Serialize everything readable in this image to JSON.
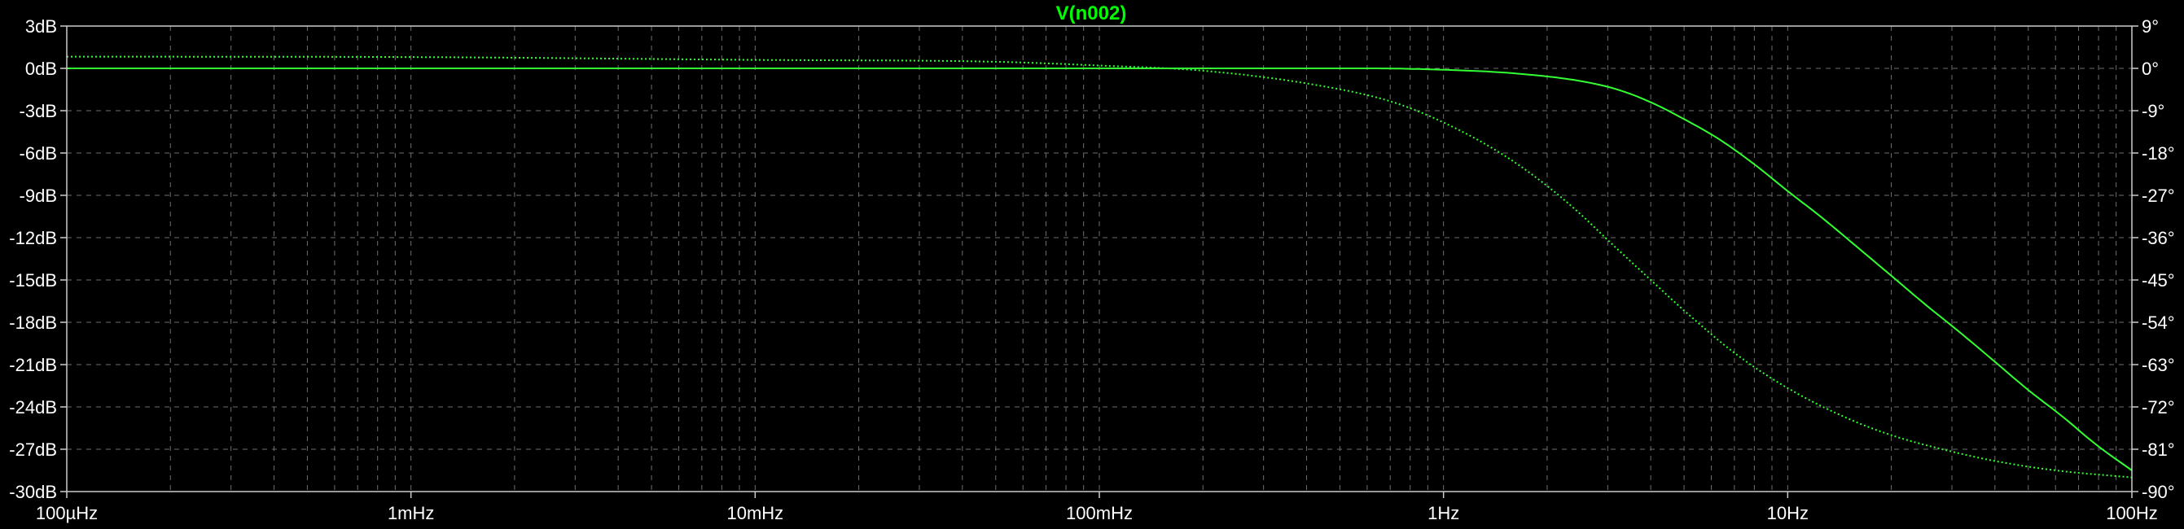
{
  "chart_data": {
    "type": "line",
    "title": "V(n002)",
    "x_scale": "log",
    "xlim_hz": [
      0.0001,
      100
    ],
    "x_ticks": [
      {
        "value": 0.0001,
        "label": "100µHz"
      },
      {
        "value": 0.001,
        "label": "1mHz"
      },
      {
        "value": 0.01,
        "label": "10mHz"
      },
      {
        "value": 0.1,
        "label": "100mHz"
      },
      {
        "value": 1,
        "label": "1Hz"
      },
      {
        "value": 10,
        "label": "10Hz"
      },
      {
        "value": 100,
        "label": "100Hz"
      }
    ],
    "y_left": {
      "ylim_db": [
        -30,
        3
      ],
      "ticks": [
        {
          "value": 3,
          "label": "3dB"
        },
        {
          "value": 0,
          "label": "0dB"
        },
        {
          "value": -3,
          "label": "-3dB"
        },
        {
          "value": -6,
          "label": "-6dB"
        },
        {
          "value": -9,
          "label": "-9dB"
        },
        {
          "value": -12,
          "label": "-12dB"
        },
        {
          "value": -15,
          "label": "-15dB"
        },
        {
          "value": -18,
          "label": "-18dB"
        },
        {
          "value": -21,
          "label": "-21dB"
        },
        {
          "value": -24,
          "label": "-24dB"
        },
        {
          "value": -27,
          "label": "-27dB"
        },
        {
          "value": -30,
          "label": "-30dB"
        }
      ]
    },
    "y_right": {
      "ylim_deg": [
        -90,
        9
      ],
      "ticks": [
        {
          "value": 9,
          "label": "9°"
        },
        {
          "value": 0,
          "label": "0°"
        },
        {
          "value": -9,
          "label": "-9°"
        },
        {
          "value": -18,
          "label": "-18°"
        },
        {
          "value": -27,
          "label": "-27°"
        },
        {
          "value": -36,
          "label": "-36°"
        },
        {
          "value": -45,
          "label": "-45°"
        },
        {
          "value": -54,
          "label": "-54°"
        },
        {
          "value": -63,
          "label": "-63°"
        },
        {
          "value": -72,
          "label": "-72°"
        },
        {
          "value": -81,
          "label": "-81°"
        },
        {
          "value": -90,
          "label": "-90°"
        }
      ]
    },
    "grid": true,
    "series": [
      {
        "axis": "left",
        "style": "solid",
        "x": [
          0.0001,
          0.001,
          0.01,
          0.1,
          0.3,
          0.6,
          1,
          1.6,
          2.5,
          3.2,
          4,
          5,
          6.3,
          8,
          10,
          12.6,
          15.8,
          20,
          25,
          31.6,
          40,
          50,
          63,
          79,
          100
        ],
        "y": [
          0,
          0,
          0,
          0,
          0,
          0,
          -0.1,
          -0.35,
          -0.9,
          -1.5,
          -2.4,
          -3.6,
          -5,
          -6.8,
          -8.7,
          -10.6,
          -12.6,
          -14.7,
          -16.7,
          -18.7,
          -20.8,
          -22.8,
          -24.7,
          -26.7,
          -28.5
        ]
      },
      {
        "axis": "right",
        "style": "dotted",
        "x": [
          0.0001,
          0.001,
          0.01,
          0.05,
          0.1,
          0.2,
          0.4,
          0.7,
          1,
          1.5,
          2,
          2.5,
          3,
          4,
          5,
          7,
          10,
          15,
          20,
          30,
          40,
          60,
          100
        ],
        "y": [
          2.5,
          2.4,
          1.8,
          1.4,
          0.6,
          -0.5,
          -3.2,
          -7,
          -11.5,
          -18.5,
          -25,
          -31,
          -36.5,
          -45,
          -51.5,
          -60.5,
          -68,
          -74.5,
          -78,
          -81.5,
          -83.5,
          -85.5,
          -87
        ]
      }
    ],
    "colors": {
      "background": "#000000",
      "trace": "#32ff32",
      "title": "#00ff00",
      "grid": "#6e6e6e",
      "frame": "#cccccc",
      "labels": "#ffffff"
    }
  }
}
